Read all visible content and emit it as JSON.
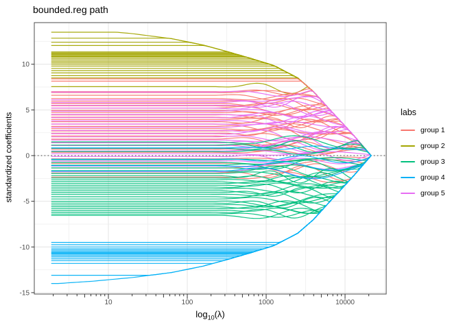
{
  "title": "bounded.reg path",
  "chart_data": {
    "type": "line",
    "title": "bounded.reg path",
    "xlabel": "log10(lambda)",
    "xlabel_parts": {
      "base": "log",
      "sub": "10",
      "rest": "(λ)"
    },
    "ylabel": "standardized coefficients",
    "x_scale": "log10",
    "x_ticks": [
      10,
      100,
      1000,
      10000
    ],
    "x_minor_tick_mantissas": [
      2,
      3,
      4,
      5,
      6,
      7,
      8,
      9
    ],
    "x_minor_gridlines_log10": [
      0.5,
      1.5,
      2.5,
      3.5,
      4.5
    ],
    "y_ticks": [
      10,
      5,
      0,
      -5,
      -10,
      -15
    ],
    "y_minor_gridlines": [
      12.5,
      7.5,
      2.5,
      -2.5,
      -7.5,
      -12.5
    ],
    "x_range_log10": [
      0.06,
      4.52
    ],
    "y_range": [
      -15.2,
      14.6
    ],
    "lambda_log10_range": [
      0.28,
      4.33
    ],
    "zero_line": {
      "y": 0,
      "style": "dotted",
      "color": "#333333"
    },
    "grid": true,
    "legend": {
      "title": "labs",
      "position": "right"
    },
    "model_note": "coefficient paths: value stays at start_value until the shrinking bound reaches it, then follows the bound to 0 at log10(lambda) = 4.33",
    "bound_curve": [
      [
        0.28,
        14.05
      ],
      [
        0.8,
        13.75
      ],
      [
        1.3,
        13.35
      ],
      [
        1.8,
        12.8
      ],
      [
        2.2,
        12.1
      ],
      [
        2.5,
        11.4
      ],
      [
        2.8,
        10.65
      ],
      [
        3.1,
        9.85
      ],
      [
        3.4,
        8.5
      ],
      [
        3.6,
        7.0
      ],
      [
        3.8,
        5.1
      ],
      [
        3.95,
        3.7
      ],
      [
        4.1,
        2.3
      ],
      [
        4.25,
        0.8
      ],
      [
        4.33,
        0.0
      ]
    ],
    "series": [
      {
        "name": "group 1",
        "color": "#F8766D",
        "start_values": [
          8.4,
          8.15,
          7.0,
          6.6,
          6.25,
          5.95,
          5.7,
          5.45,
          5.2,
          4.95,
          4.7,
          4.45,
          4.2,
          3.95,
          3.7,
          3.45,
          3.2,
          2.95,
          2.7,
          2.45,
          2.15,
          1.8,
          1.45,
          1.1,
          0.7,
          0.35,
          -0.35,
          -0.85,
          -1.35,
          -1.9,
          -2.35,
          6.9
        ]
      },
      {
        "name": "group 2",
        "color": "#A3A500",
        "start_values": [
          13.5,
          12.85,
          12.4,
          12.05,
          11.35,
          11.25,
          11.15,
          11.05,
          10.95,
          10.85,
          10.75,
          10.6,
          10.45,
          10.3,
          10.15,
          10.0,
          9.8,
          9.55,
          9.3,
          9.05,
          8.75,
          8.5,
          7.55
        ]
      },
      {
        "name": "group 3",
        "color": "#00BF7D",
        "start_values": [
          1.5,
          1.15,
          0.8,
          0.45,
          -0.45,
          -0.75,
          -1.05,
          -1.35,
          -1.65,
          -1.95,
          -2.2,
          -2.45,
          -2.65,
          -2.85,
          -3.05,
          -3.25,
          -3.45,
          -3.65,
          -3.85,
          -4.05,
          -4.25,
          -4.5,
          -4.75,
          -5.0,
          -5.2,
          -5.4,
          -5.6,
          -5.8,
          -6.0,
          -6.2,
          -6.4,
          -6.55
        ]
      },
      {
        "name": "group 4",
        "color": "#00B0F6",
        "start_values": [
          0.85,
          -0.4,
          -1.1,
          -1.7,
          -9.5,
          -9.75,
          -10.0,
          -10.2,
          -10.35,
          -10.5,
          -10.6,
          -10.7,
          -10.8,
          -10.95,
          -11.1,
          -11.3,
          -11.5,
          -11.8,
          -13.1,
          -14.0
        ]
      },
      {
        "name": "group 5",
        "color": "#E76BF3",
        "start_values": [
          6.95,
          6.1,
          5.8,
          5.5,
          5.2,
          4.85,
          4.5,
          4.15,
          3.8,
          3.45,
          3.1,
          2.75,
          2.4,
          2.05,
          1.7,
          1.4,
          1.1,
          0.8,
          0.5,
          0.2,
          -0.1,
          -0.6,
          -1.15,
          -1.75
        ]
      }
    ],
    "colors": {
      "grid_major": "#e4e4e4",
      "grid_minor": "#f2f2f2",
      "panel_border": "#4d4d4d",
      "tick": "#333333",
      "tick_label": "#4d4d4d",
      "text": "#000000",
      "background": "#ffffff"
    }
  }
}
